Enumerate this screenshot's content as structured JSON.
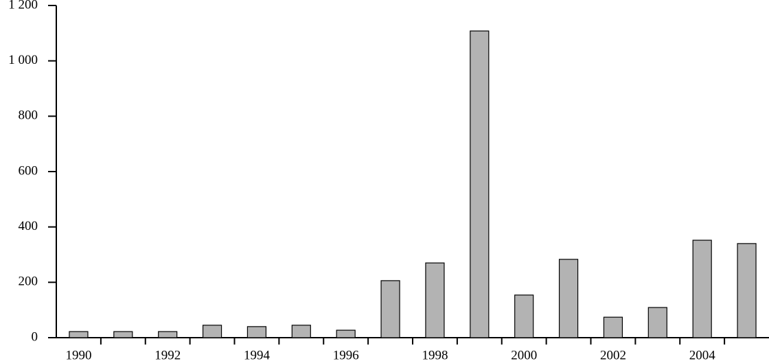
{
  "chart_data": {
    "type": "bar",
    "categories": [
      "1990",
      null,
      "1992",
      null,
      "1994",
      null,
      "1996",
      null,
      "1998",
      null,
      "2000",
      null,
      "2002",
      null,
      "2004",
      null
    ],
    "values": [
      22,
      22,
      22,
      45,
      40,
      45,
      27,
      206,
      270,
      1108,
      154,
      283,
      74,
      109,
      352,
      340
    ],
    "color": "#b3b3b3",
    "ylim": [
      0,
      1200
    ],
    "yticks": [
      0,
      200,
      400,
      600,
      800,
      {
        "value": 1000,
        "label": "1 000"
      },
      {
        "value": 1200,
        "label": "1 200"
      }
    ],
    "grid": false
  }
}
